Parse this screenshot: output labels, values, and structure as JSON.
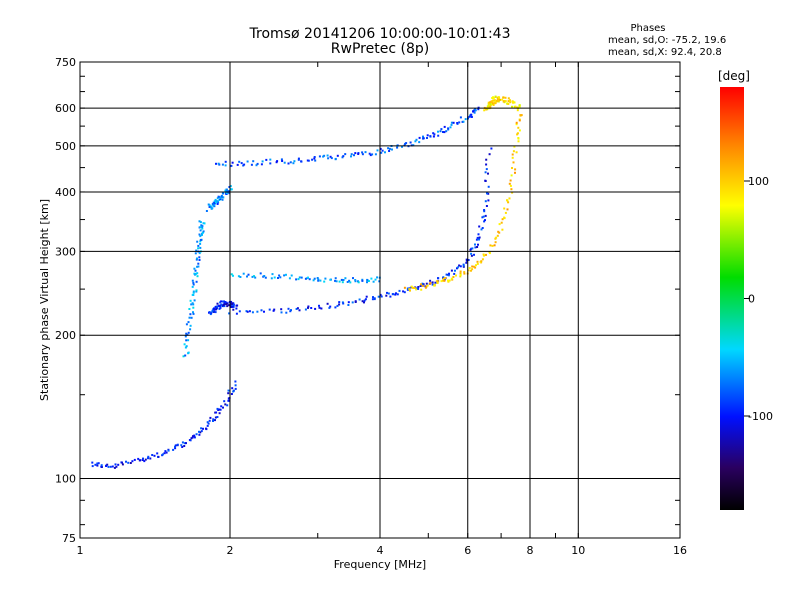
{
  "chart_data": {
    "type": "scatter",
    "title": "Tromsø 20141206 10:00:00-10:01:43",
    "subtitle": "RwPretec (8p)",
    "xlabel": "Frequency [MHz]",
    "ylabel": "Stationary phase Virtual Height [km]",
    "x_scale": "log",
    "y_scale": "log",
    "xlim": [
      1,
      16
    ],
    "ylim": [
      75,
      750
    ],
    "x_ticks": [
      1,
      2,
      4,
      6,
      8,
      10,
      16
    ],
    "y_ticks": [
      75,
      100,
      200,
      300,
      400,
      500,
      600,
      750
    ],
    "grid": true,
    "phase_stats": {
      "title": "Phases",
      "line_o": "mean, sd,O: -75.2, 19.6",
      "line_x": "mean, sd,X:  92.4, 20.8"
    },
    "colorbar": {
      "label": "[deg]",
      "range": [
        -180,
        180
      ],
      "ticks": [
        100,
        0,
        -100
      ],
      "colormap": "rainbow"
    },
    "traces": [
      {
        "x": [
          1.05,
          1.15,
          1.3,
          1.45,
          1.6,
          1.72,
          1.85,
          1.95,
          2.05
        ],
        "y": [
          108,
          106,
          110,
          113,
          118,
          125,
          135,
          145,
          160
        ],
        "phase": -100
      },
      {
        "x": [
          1.62,
          1.65,
          1.68,
          1.7,
          1.72,
          1.74,
          1.75
        ],
        "y": [
          180,
          210,
          240,
          270,
          300,
          330,
          350
        ],
        "phase": -60
      },
      {
        "x": [
          1.82,
          1.86,
          1.9,
          1.95,
          2.0,
          2.05
        ],
        "y": [
          225,
          228,
          232,
          235,
          233,
          230
        ],
        "phase": -100
      },
      {
        "x": [
          2.0,
          2.5,
          3.0,
          3.5,
          4.0,
          4.5,
          5.0,
          5.5,
          6.0,
          6.3,
          6.5,
          6.6
        ],
        "y": [
          225,
          226,
          230,
          236,
          242,
          250,
          258,
          270,
          290,
          320,
          380,
          500
        ],
        "phase": -95
      },
      {
        "x": [
          4.5,
          5.0,
          5.5,
          6.0,
          6.5,
          7.0,
          7.3,
          7.5,
          7.6
        ],
        "y": [
          250,
          256,
          264,
          275,
          295,
          340,
          410,
          520,
          600
        ],
        "phase": 100
      },
      {
        "x": [
          1.85,
          2.2,
          2.6,
          3.0,
          3.5,
          4.0,
          4.5,
          5.0,
          5.5,
          6.0,
          6.3
        ],
        "y": [
          460,
          462,
          466,
          472,
          480,
          490,
          505,
          525,
          550,
          580,
          600
        ],
        "phase": -80
      },
      {
        "x": [
          6.5,
          6.6,
          6.7,
          6.8,
          7.0,
          7.3,
          7.6
        ],
        "y": [
          600,
          610,
          620,
          630,
          630,
          620,
          600
        ],
        "phase": 90
      },
      {
        "x": [
          1.8,
          1.85,
          1.9,
          1.95,
          2.0
        ],
        "y": [
          370,
          380,
          390,
          400,
          410
        ],
        "phase": -70
      },
      {
        "x": [
          2.0,
          2.4,
          2.8,
          3.2,
          3.6,
          4.0
        ],
        "y": [
          270,
          268,
          265,
          263,
          262,
          263
        ],
        "phase": -60
      }
    ]
  }
}
